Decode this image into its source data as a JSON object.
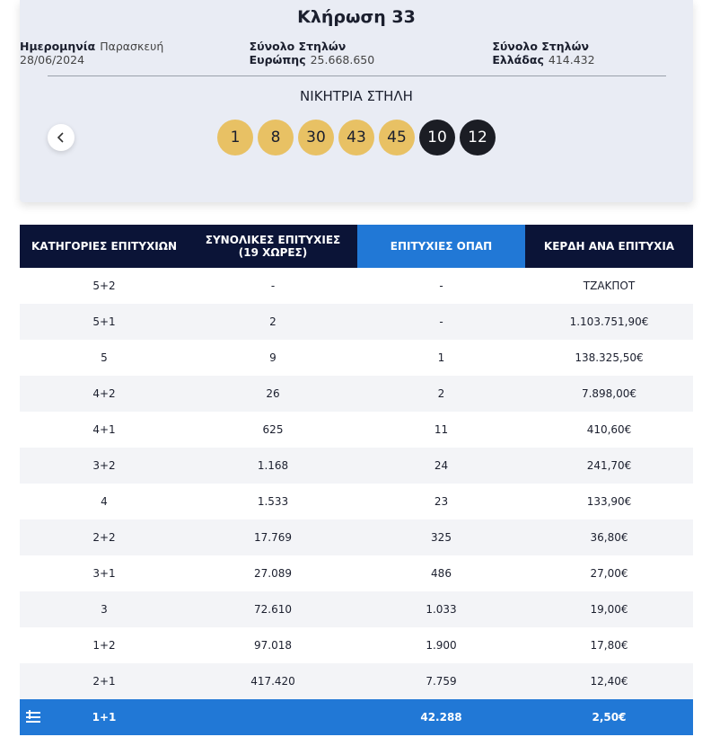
{
  "header": {
    "title": "Κλήρωση 33",
    "info": [
      {
        "label": "Ημερομηνία",
        "value": "Παρασκευή 28/06/2024"
      },
      {
        "label": "Σύνολο Στηλών Ευρώπης",
        "value": "25.668.650"
      },
      {
        "label": "Σύνολο Στηλών Ελλάδας",
        "value": "414.432"
      }
    ]
  },
  "winning": {
    "title": "ΝΙΚΗΤΡΙΑ ΣΤΗΛΗ",
    "numbers": [
      1,
      8,
      30,
      43,
      45
    ],
    "euro_numbers": [
      10,
      12
    ]
  },
  "table": {
    "columns": [
      "ΚΑΤΗΓΟΡΙΕΣ ΕΠΙΤΥΧΙΩΝ",
      "ΣΥΝΟΛΙΚΕΣ ΕΠΙΤΥΧΙΕΣ (19 ΧΩΡΕΣ)",
      "ΕΠΙΤΥΧΙΕΣ ΟΠΑΠ",
      "ΚΕΡΔΗ ΑΝΑ ΕΠΙΤΥΧΙΑ"
    ],
    "rows": [
      [
        "5+2",
        "-",
        "-",
        "ΤΖΑΚΠΟΤ"
      ],
      [
        "5+1",
        "2",
        "-",
        "1.103.751,90€"
      ],
      [
        "5",
        "9",
        "1",
        "138.325,50€"
      ],
      [
        "4+2",
        "26",
        "2",
        "7.898,00€"
      ],
      [
        "4+1",
        "625",
        "11",
        "410,60€"
      ],
      [
        "3+2",
        "1.168",
        "24",
        "241,70€"
      ],
      [
        "4",
        "1.533",
        "23",
        "133,90€"
      ],
      [
        "2+2",
        "17.769",
        "325",
        "36,80€"
      ],
      [
        "3+1",
        "27.089",
        "486",
        "27,00€"
      ],
      [
        "3",
        "72.610",
        "1.033",
        "19,00€"
      ],
      [
        "1+2",
        "97.018",
        "1.900",
        "17,80€"
      ],
      [
        "2+1",
        "417.420",
        "7.759",
        "12,40€"
      ],
      [
        "1+1",
        "",
        "42.288",
        "2,50€"
      ]
    ]
  }
}
